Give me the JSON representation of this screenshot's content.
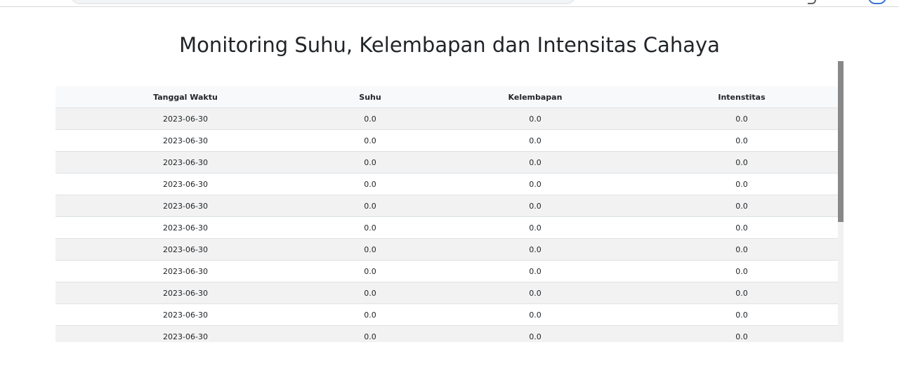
{
  "page": {
    "title": "Monitoring Suhu, Kelembapan dan Intensitas Cahaya"
  },
  "table": {
    "headers": [
      "Tanggal Waktu",
      "Suhu",
      "Kelembapan",
      "Intenstitas"
    ],
    "rows": [
      [
        "2023-06-30",
        "0.0",
        "0.0",
        "0.0"
      ],
      [
        "2023-06-30",
        "0.0",
        "0.0",
        "0.0"
      ],
      [
        "2023-06-30",
        "0.0",
        "0.0",
        "0.0"
      ],
      [
        "2023-06-30",
        "0.0",
        "0.0",
        "0.0"
      ],
      [
        "2023-06-30",
        "0.0",
        "0.0",
        "0.0"
      ],
      [
        "2023-06-30",
        "0.0",
        "0.0",
        "0.0"
      ],
      [
        "2023-06-30",
        "0.0",
        "0.0",
        "0.0"
      ],
      [
        "2023-06-30",
        "0.0",
        "0.0",
        "0.0"
      ],
      [
        "2023-06-30",
        "0.0",
        "0.0",
        "0.0"
      ],
      [
        "2023-06-30",
        "0.0",
        "0.0",
        "0.0"
      ],
      [
        "2023-06-30",
        "0.0",
        "0.0",
        "0.0"
      ]
    ]
  },
  "colors": {
    "header_bg": "#f8f9fa",
    "row_stripe": "#f2f2f2",
    "scrollbar_thumb": "#888888"
  }
}
